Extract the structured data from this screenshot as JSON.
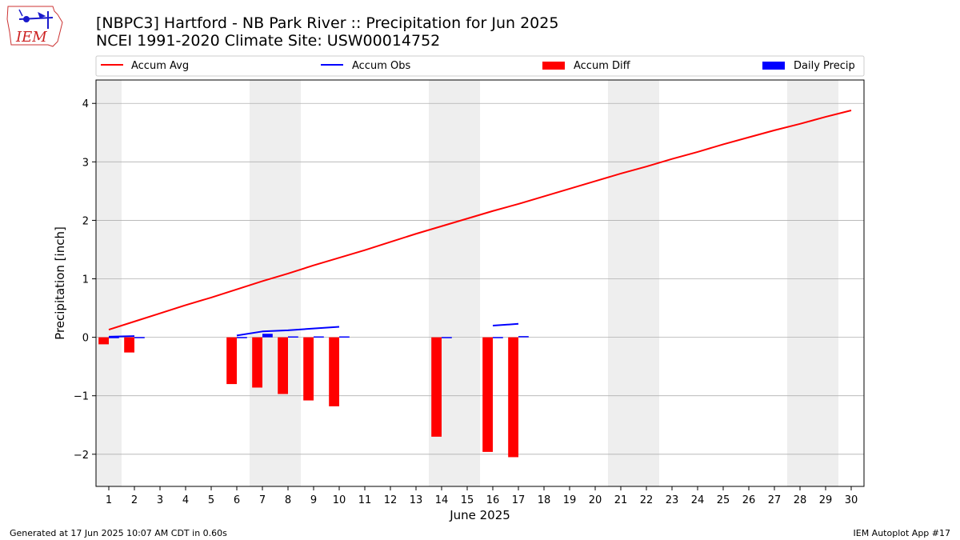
{
  "logo": {
    "text": "IEM"
  },
  "title_lines": [
    "[NBPC3] Hartford - NB Park River :: Precipitation for Jun 2025",
    "NCEI 1991-2020 Climate Site: USW00014752"
  ],
  "footer": {
    "left": "Generated at 17 Jun 2025 10:07 AM CDT in 0.60s",
    "right": "IEM Autoplot App #17"
  },
  "colors": {
    "avg": "#ff0000",
    "obs": "#0000ff",
    "diff": "#ff0000",
    "daily": "#0000ff",
    "weekend": "#eeeeee",
    "grid": "#b0b0b0"
  },
  "chart_data": {
    "type": "bar",
    "xlabel": "June 2025",
    "ylabel": "Precipitation [inch]",
    "xlim": [
      0.5,
      30.5
    ],
    "ylim": [
      -2.55,
      4.4
    ],
    "y_ticks": [
      -2,
      -1,
      0,
      1,
      2,
      3,
      4
    ],
    "y_tick_labels": [
      "−2",
      "−1",
      "0",
      "1",
      "2",
      "3",
      "4"
    ],
    "x_ticks": [
      1,
      2,
      3,
      4,
      5,
      6,
      7,
      8,
      9,
      10,
      11,
      12,
      13,
      14,
      15,
      16,
      17,
      18,
      19,
      20,
      21,
      22,
      23,
      24,
      25,
      26,
      27,
      28,
      29,
      30
    ],
    "x_tick_labels": [
      "1",
      "2",
      "3",
      "4",
      "5",
      "6",
      "7",
      "8",
      "9",
      "10",
      "11",
      "12",
      "13",
      "14",
      "15",
      "16",
      "17",
      "18",
      "19",
      "20",
      "21",
      "22",
      "23",
      "24",
      "25",
      "26",
      "27",
      "28",
      "29",
      "30"
    ],
    "weekend_spans": [
      [
        0.5,
        1.5
      ],
      [
        6.5,
        8.5
      ],
      [
        13.5,
        15.5
      ],
      [
        20.5,
        22.5
      ],
      [
        27.5,
        29.5
      ]
    ],
    "grid": "horizontal",
    "legend_placement": "top",
    "legend": [
      "Accum Avg",
      "Accum Obs",
      "Accum Diff",
      "Daily Precip"
    ],
    "series": [
      {
        "name": "Accum Avg",
        "kind": "line",
        "segments": [
          {
            "x": [
              1,
              2,
              3,
              4,
              5,
              6,
              7,
              8,
              9,
              10,
              11,
              12,
              13,
              14,
              15,
              16,
              17,
              18,
              19,
              20,
              21,
              22,
              23,
              24,
              25,
              26,
              27,
              28,
              29,
              30
            ],
            "y": [
              0.13,
              0.27,
              0.41,
              0.55,
              0.68,
              0.82,
              0.96,
              1.09,
              1.23,
              1.36,
              1.49,
              1.63,
              1.77,
              1.9,
              2.03,
              2.16,
              2.28,
              2.41,
              2.54,
              2.67,
              2.8,
              2.92,
              3.05,
              3.17,
              3.3,
              3.42,
              3.54,
              3.65,
              3.77,
              3.88
            ]
          }
        ]
      },
      {
        "name": "Accum Obs",
        "kind": "line",
        "segments": [
          {
            "x": [
              1,
              2
            ],
            "y": [
              0.01,
              0.02
            ]
          },
          {
            "x": [
              6,
              7,
              8,
              9,
              10
            ],
            "y": [
              0.03,
              0.1,
              0.12,
              0.15,
              0.18
            ]
          },
          {
            "x": [
              16,
              17
            ],
            "y": [
              0.2,
              0.23
            ]
          }
        ]
      },
      {
        "name": "Accum Diff",
        "kind": "bar",
        "x": [
          1,
          2,
          6,
          7,
          8,
          9,
          10,
          14,
          16,
          17
        ],
        "y": [
          -0.12,
          -0.26,
          -0.8,
          -0.86,
          -0.97,
          -1.08,
          -1.18,
          -1.7,
          -1.96,
          -2.05
        ]
      },
      {
        "name": "Daily Precip",
        "kind": "bar",
        "x": [
          1,
          2,
          6,
          7,
          8,
          9,
          10,
          14,
          16,
          17
        ],
        "y": [
          0.005,
          0.005,
          0.005,
          0.06,
          0.015,
          0.015,
          0.015,
          0.005,
          0.005,
          0.02
        ]
      }
    ]
  }
}
